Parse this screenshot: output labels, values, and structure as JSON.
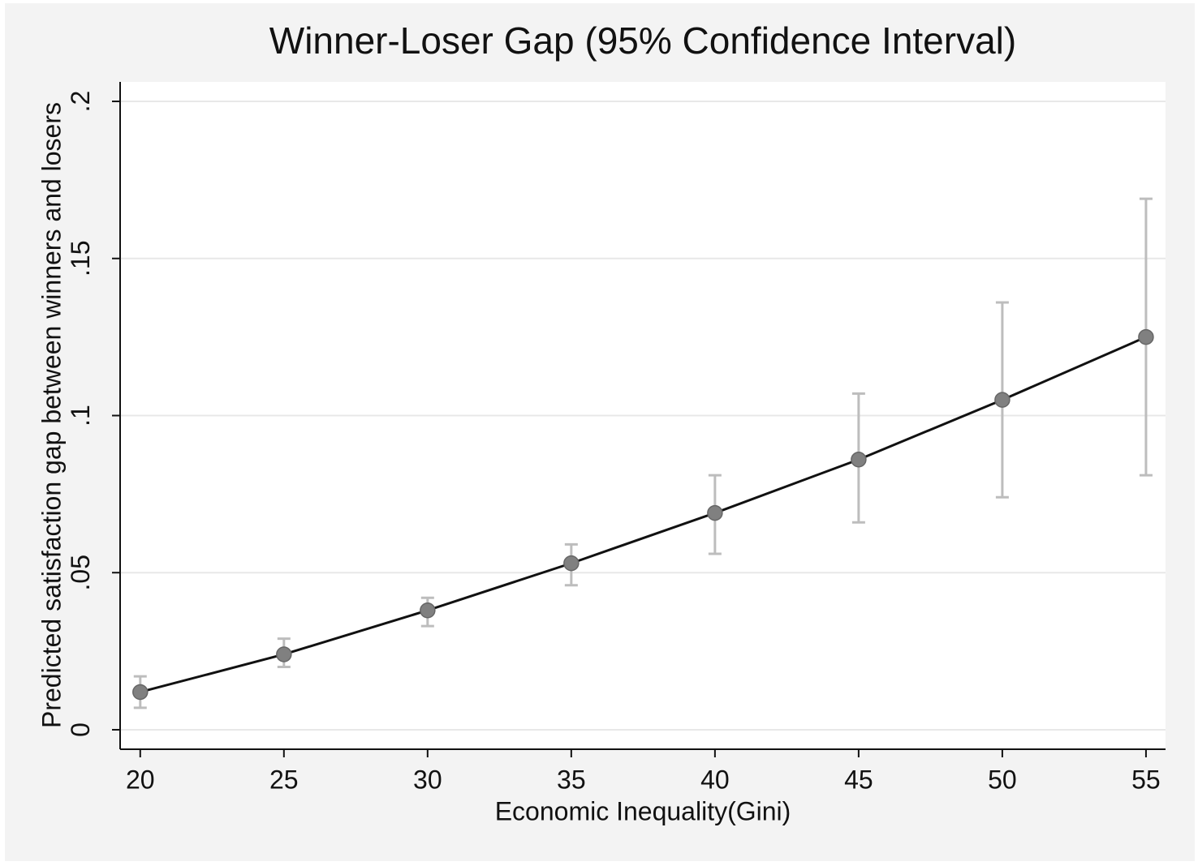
{
  "chart_data": {
    "type": "line",
    "title": "Winner-Loser Gap (95% Confidence Interval)",
    "xlabel": "Economic Inequality(Gini)",
    "ylabel": "Predicted satisfaction gap between winners and losers",
    "x": [
      20,
      25,
      30,
      35,
      40,
      45,
      50,
      55
    ],
    "series": [
      {
        "color": "#808080",
        "line_color": "#111111",
        "error_color": "#bdbdbd",
        "values": [
          0.012,
          0.024,
          0.038,
          0.053,
          0.069,
          0.086,
          0.105,
          0.125
        ],
        "lower": [
          0.007,
          0.02,
          0.033,
          0.046,
          0.056,
          0.066,
          0.074,
          0.081
        ],
        "upper": [
          0.017,
          0.029,
          0.042,
          0.059,
          0.081,
          0.107,
          0.136,
          0.169
        ]
      }
    ],
    "xlim": [
      19.3,
      55.68
    ],
    "ylim": [
      -0.0062,
      0.2062
    ],
    "xticks": [
      20,
      25,
      30,
      35,
      40,
      45,
      50,
      55
    ],
    "yticks": [
      0,
      {
        "value": 0.05,
        "label": ".05"
      },
      {
        "value": 0.1,
        "label": ".1"
      },
      {
        "value": 0.15,
        "label": ".15"
      },
      {
        "value": 0.2,
        "label": ".2"
      }
    ],
    "grid": true
  }
}
